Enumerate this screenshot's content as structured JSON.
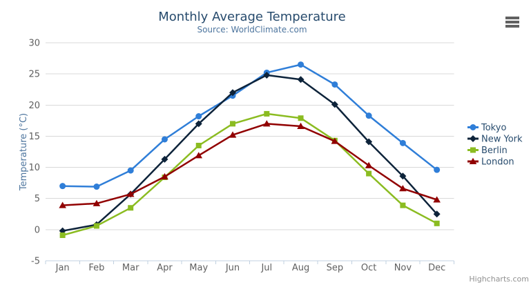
{
  "credits": "Highcharts.com",
  "icons": {
    "context_menu": "hamburger-icon"
  },
  "palette": {
    "background": "#ffffff",
    "title": "#274b6d",
    "subtitle": "#4d759e",
    "axis_title": "#4d759e",
    "tick_label": "#606060",
    "grid_line": "#d8d8d8",
    "axis_line": "#c0d0e0",
    "legend_text": "#274b6d",
    "credits": "#909090",
    "menu_icon": "#616161"
  },
  "chart_data": {
    "type": "line",
    "title": "Monthly Average Temperature",
    "subtitle": "Source: WorldClimate.com",
    "xlabel": "",
    "ylabel": "Temperature (°C)",
    "categories": [
      "Jan",
      "Feb",
      "Mar",
      "Apr",
      "May",
      "Jun",
      "Jul",
      "Aug",
      "Sep",
      "Oct",
      "Nov",
      "Dec"
    ],
    "series": [
      {
        "name": "Tokyo",
        "color": "#2f7ed8",
        "marker": "circle",
        "values": [
          7.0,
          6.9,
          9.5,
          14.5,
          18.2,
          21.5,
          25.2,
          26.5,
          23.3,
          18.3,
          13.9,
          9.6
        ]
      },
      {
        "name": "New York",
        "color": "#0d233a",
        "marker": "diamond",
        "values": [
          -0.2,
          0.8,
          5.7,
          11.3,
          17.0,
          22.0,
          24.8,
          24.1,
          20.1,
          14.1,
          8.6,
          2.5
        ]
      },
      {
        "name": "Berlin",
        "color": "#8bbc21",
        "marker": "square",
        "values": [
          -0.9,
          0.6,
          3.5,
          8.4,
          13.5,
          17.0,
          18.6,
          17.9,
          14.3,
          9.0,
          3.9,
          1.0
        ]
      },
      {
        "name": "London",
        "color": "#910000",
        "marker": "triangle",
        "values": [
          3.9,
          4.2,
          5.7,
          8.5,
          11.9,
          15.2,
          17.0,
          16.6,
          14.2,
          10.3,
          6.6,
          4.8
        ]
      }
    ],
    "ylim": [
      -5,
      30
    ],
    "ytick_step": 5,
    "grid": true,
    "legend_position": "right"
  }
}
